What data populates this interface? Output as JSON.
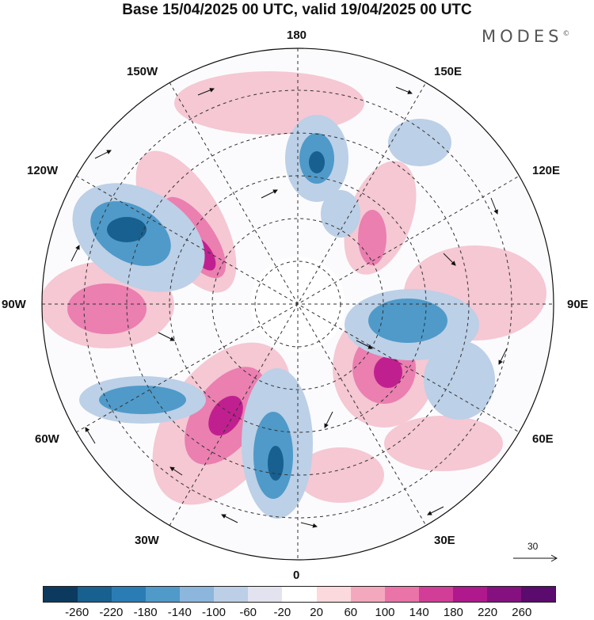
{
  "title": "Base 15/04/2025 00 UTC, valid 19/04/2025 00 UTC",
  "brand": "MODES",
  "brand_mark": "©",
  "longitude_labels": {
    "top": "180",
    "bottom": "0",
    "left": "90W",
    "right": "90E",
    "upper_left_1": "150W",
    "upper_left_2": "120W",
    "upper_right_1": "150E",
    "upper_right_2": "120E",
    "lower_left_1": "60W",
    "lower_left_2": "30W",
    "lower_right_1": "60E",
    "lower_right_2": "30E"
  },
  "reference_vector": "30",
  "colorbar": {
    "ticks": [
      "-260",
      "-220",
      "-180",
      "-140",
      "-100",
      "-60",
      "-20",
      "20",
      "60",
      "100",
      "140",
      "180",
      "220",
      "260"
    ],
    "colors": [
      "#0b3a5e",
      "#17608f",
      "#2a7db4",
      "#4f9ac9",
      "#8cb6dc",
      "#bccfe6",
      "#e3e3ef",
      "#ffffff",
      "#fbd9dc",
      "#f4a8be",
      "#ea74a8",
      "#d23d97",
      "#b0188d",
      "#85107f",
      "#5b0a6e"
    ]
  }
}
